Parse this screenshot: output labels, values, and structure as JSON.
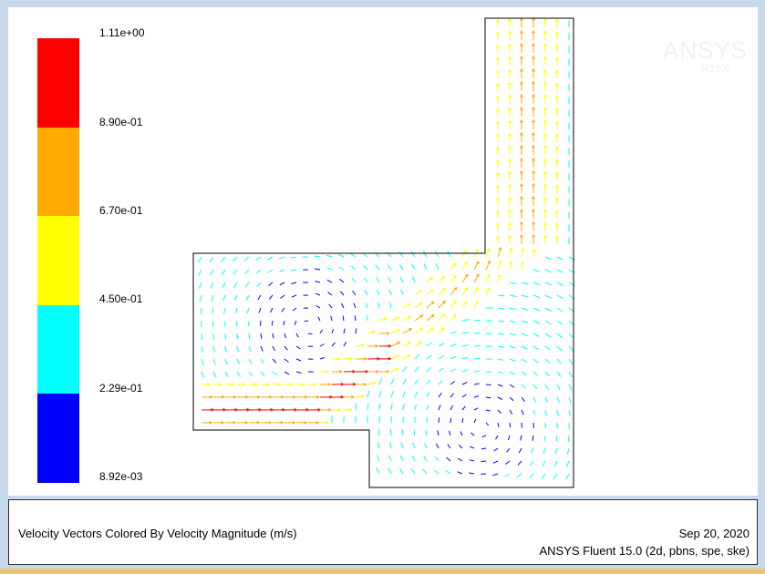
{
  "legend": {
    "colors": [
      "#ff0000",
      "#ffaa00",
      "#ffff00",
      "#00ffff",
      "#0000ff"
    ],
    "ticks": [
      "1.11e+00",
      "8.90e-01",
      "6.70e-01",
      "4.50e-01",
      "2.29e-01",
      "8.92e-03"
    ]
  },
  "watermark": {
    "brand": "ANSYS",
    "version": "R15.0"
  },
  "info": {
    "caption": "Velocity Vectors Colored By Velocity Magnitude (m/s)",
    "date": "Sep 20, 2020",
    "product": "ANSYS Fluent 15.0 (2d, pbns, spe, ske)"
  },
  "colors": {
    "frame": "#c9d9ec",
    "outline": "#000000",
    "strip": "#e8c877"
  }
}
